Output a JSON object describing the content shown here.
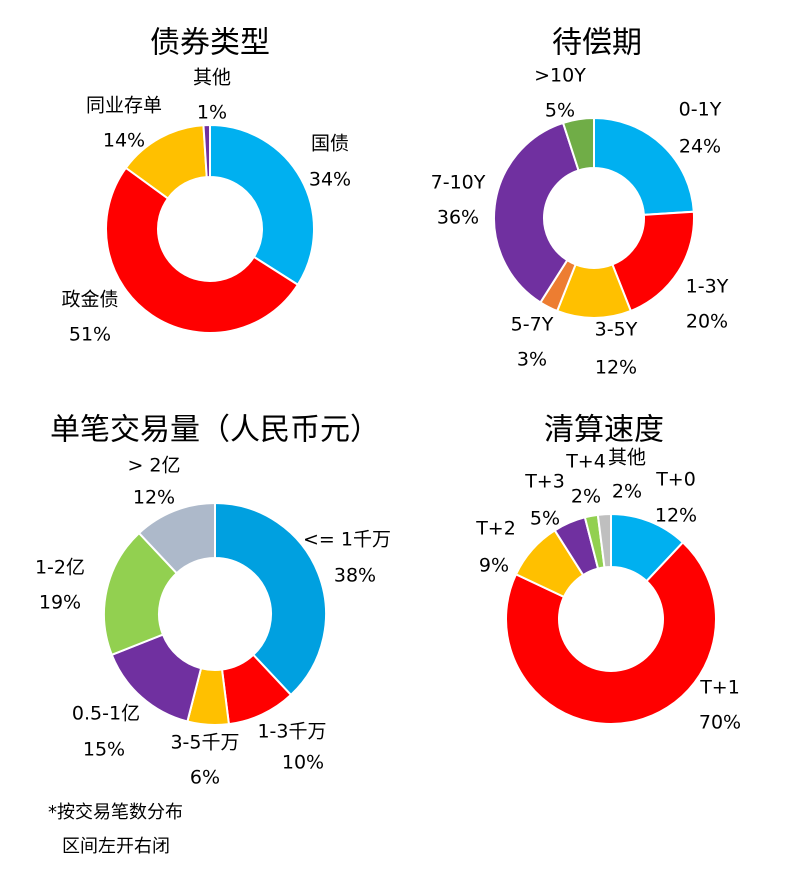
{
  "chart_data": [
    {
      "type": "pie",
      "title": "债券类型",
      "categories": [
        "国债",
        "政金债",
        "同业存单",
        "其他"
      ],
      "values": [
        34,
        51,
        14,
        1
      ],
      "labels": [
        "34%",
        "51%",
        "14%",
        "1%"
      ],
      "colors": [
        "#00B0F0",
        "#FF0000",
        "#FFC000",
        "#7030A0"
      ],
      "donut": true,
      "legend": "none"
    },
    {
      "type": "pie",
      "title": "待偿期",
      "categories": [
        "0-1Y",
        "1-3Y",
        "3-5Y",
        "5-7Y",
        "7-10Y",
        ">10Y"
      ],
      "values": [
        24,
        20,
        12,
        3,
        36,
        5
      ],
      "labels": [
        "24%",
        "20%",
        "12%",
        "3%",
        "36%",
        "5%"
      ],
      "colors": [
        "#00B0F0",
        "#FF0000",
        "#FFC000",
        "#ED7D31",
        "#7030A0",
        "#70AD47"
      ],
      "donut": true,
      "legend": "none"
    },
    {
      "type": "pie",
      "title": "单笔交易量（人民币元）",
      "categories": [
        "<= 1千万",
        "1-3千万",
        "3-5千万",
        "0.5-1亿",
        "1-2亿",
        "> 2亿"
      ],
      "values": [
        38,
        10,
        6,
        15,
        19,
        12
      ],
      "labels": [
        "38%",
        "10%",
        "6%",
        "15%",
        "19%",
        "12%"
      ],
      "colors": [
        "#00A0E0",
        "#FF0000",
        "#FFC000",
        "#7030A0",
        "#92D050",
        "#ADB9CA"
      ],
      "donut": true,
      "legend": "none"
    },
    {
      "type": "pie",
      "title": "清算速度",
      "categories": [
        "T+0",
        "T+1",
        "T+2",
        "T+3",
        "T+4",
        "其他"
      ],
      "values": [
        12,
        70,
        9,
        5,
        2,
        2
      ],
      "labels": [
        "12%",
        "70%",
        "9%",
        "5%",
        "2%",
        "2%"
      ],
      "colors": [
        "#00B0F0",
        "#FF0000",
        "#FFC000",
        "#7030A0",
        "#92D050",
        "#BFBFBF"
      ],
      "donut": true,
      "legend": "none"
    }
  ],
  "footnote": {
    "line1": "*按交易笔数分布",
    "line2": "区间左开右闭"
  }
}
